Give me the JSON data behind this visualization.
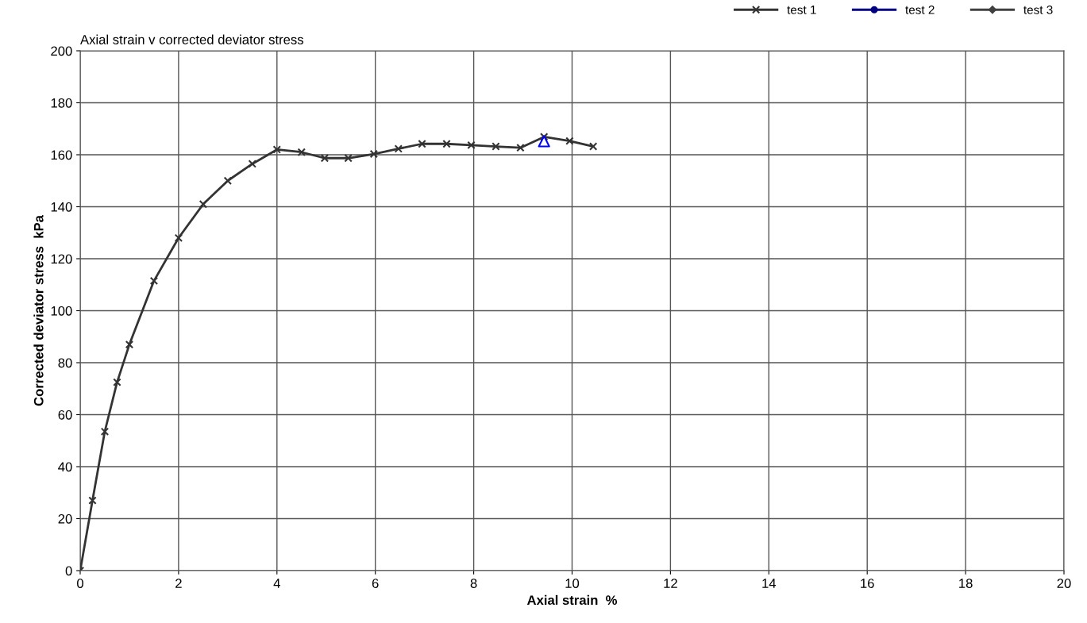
{
  "chart_data": {
    "type": "line",
    "title": "Axial strain v corrected deviator stress",
    "xlabel": "Axial strain  %",
    "ylabel": "Corrected deviator stress  kPa",
    "xlim": [
      0,
      20
    ],
    "xticks": [
      0,
      2,
      4,
      6,
      8,
      10,
      12,
      14,
      16,
      18,
      20
    ],
    "ylim": [
      0,
      200
    ],
    "yticks": [
      0,
      20,
      40,
      60,
      80,
      100,
      120,
      140,
      160,
      180,
      200
    ],
    "grid": true,
    "legend": "top right",
    "line_style": "solid",
    "series": [
      {
        "name": "test 1",
        "color": "#333333",
        "marker": "cross",
        "x": [
          0,
          0.25,
          0.5,
          0.75,
          1,
          1.5,
          2,
          2.5,
          3,
          3.5,
          4,
          4.5,
          4.97,
          5.45,
          5.97,
          6.47,
          6.95,
          7.45,
          7.95,
          8.45,
          8.95,
          9.43,
          9.95,
          10.43
        ],
        "values": [
          0,
          27,
          53.5,
          72.5,
          87,
          111.5,
          128,
          141,
          150,
          156.5,
          162,
          161,
          158.7,
          158.7,
          160.3,
          162.3,
          164.2,
          164.2,
          163.7,
          163.2,
          162.7,
          166.9,
          165.3,
          163.2
        ]
      },
      {
        "name": "test 2",
        "color": "#000080",
        "marker": "circle"
      },
      {
        "name": "test 3",
        "color": "#404040",
        "marker": "diamond"
      },
      {
        "type": "scatter",
        "color": "#0000ff",
        "marker": "triangle",
        "x": [
          9.43
        ],
        "values": [
          165.2
        ]
      }
    ]
  }
}
